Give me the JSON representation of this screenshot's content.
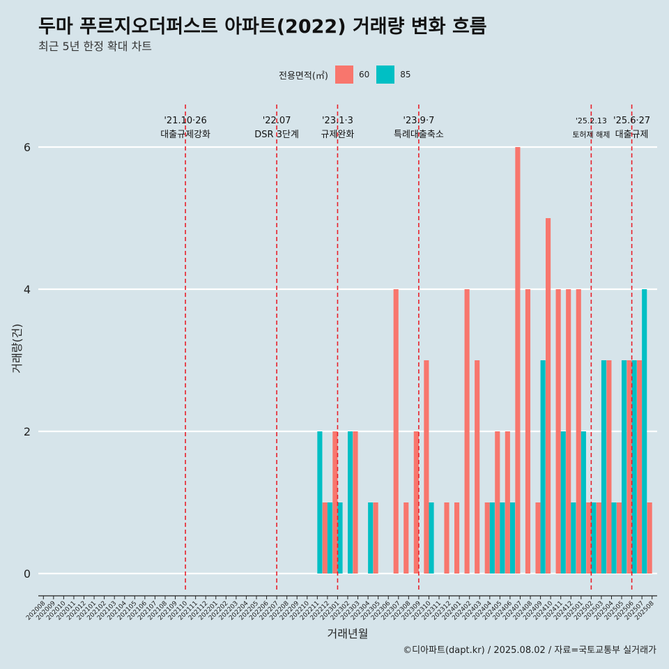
{
  "header": {
    "title": "두마 푸르지오더퍼스트 아파트(2022) 거래량 변화 흐름",
    "subtitle": "최근 5년 한정 확대 차트"
  },
  "caption": "©디아파트(dapt.kr) / 2025.08.02 / 자료=국토교통부 실거래가",
  "legend": {
    "title": "전용면적(㎡)",
    "items": [
      {
        "label": "60",
        "color": "#f8766d"
      },
      {
        "label": "85",
        "color": "#00bfc4"
      }
    ]
  },
  "chart_data": {
    "type": "bar",
    "xlabel": "거래년월",
    "ylabel": "거래량(건)",
    "ylim": [
      0,
      6
    ],
    "yticks": [
      0,
      2,
      4,
      6
    ],
    "grid": true,
    "legend_position": "top",
    "categories": [
      "202008",
      "202009",
      "202010",
      "202011",
      "202012",
      "202101",
      "202102",
      "202103",
      "202104",
      "202105",
      "202106",
      "202107",
      "202108",
      "202109",
      "202110",
      "202111",
      "202112",
      "202201",
      "202202",
      "202203",
      "202204",
      "202205",
      "202206",
      "202207",
      "202208",
      "202209",
      "202210",
      "202211",
      "202212",
      "202301",
      "202302",
      "202303",
      "202304",
      "202305",
      "202306",
      "202307",
      "202308",
      "202309",
      "202310",
      "202311",
      "202312",
      "202401",
      "202402",
      "202403",
      "202404",
      "202405",
      "202406",
      "202407",
      "202408",
      "202409",
      "202410",
      "202411",
      "202412",
      "202501",
      "202502",
      "202503",
      "202504",
      "202505",
      "202506",
      "202507",
      "202508"
    ],
    "series": [
      {
        "name": "60",
        "color": "#f8766d",
        "values": [
          0,
          0,
          0,
          0,
          0,
          0,
          0,
          0,
          0,
          0,
          0,
          0,
          0,
          0,
          0,
          0,
          0,
          0,
          0,
          0,
          0,
          0,
          0,
          0,
          0,
          0,
          0,
          0,
          1,
          2,
          0,
          2,
          0,
          1,
          0,
          4,
          1,
          2,
          3,
          0,
          1,
          1,
          4,
          3,
          1,
          2,
          2,
          6,
          4,
          1,
          5,
          4,
          4,
          4,
          1,
          1,
          3,
          1,
          3,
          3,
          1
        ]
      },
      {
        "name": "85",
        "color": "#00bfc4",
        "values": [
          0,
          0,
          0,
          0,
          0,
          0,
          0,
          0,
          0,
          0,
          0,
          0,
          0,
          0,
          0,
          0,
          0,
          0,
          0,
          0,
          0,
          0,
          0,
          0,
          0,
          0,
          0,
          2,
          1,
          1,
          2,
          0,
          1,
          0,
          0,
          0,
          0,
          0,
          1,
          0,
          0,
          0,
          0,
          0,
          1,
          1,
          1,
          0,
          0,
          3,
          0,
          2,
          1,
          2,
          1,
          3,
          1,
          3,
          3,
          4,
          0
        ]
      }
    ],
    "annotations": [
      {
        "date": "'21.10·26",
        "label": "대출규제강화",
        "x": "202110"
      },
      {
        "date": "'22.07",
        "label": "DSR 3단계",
        "x": "202207"
      },
      {
        "date": "'23.1·3",
        "label": "규제완화",
        "x": "202301"
      },
      {
        "date": "'23.9·7",
        "label": "특례대출축소",
        "x": "202309"
      },
      {
        "date": "'25.2.13",
        "label": "토허제 해제",
        "x": "202502"
      },
      {
        "date": "'25.6·27",
        "label": "대출규제",
        "x": "202506"
      }
    ]
  }
}
